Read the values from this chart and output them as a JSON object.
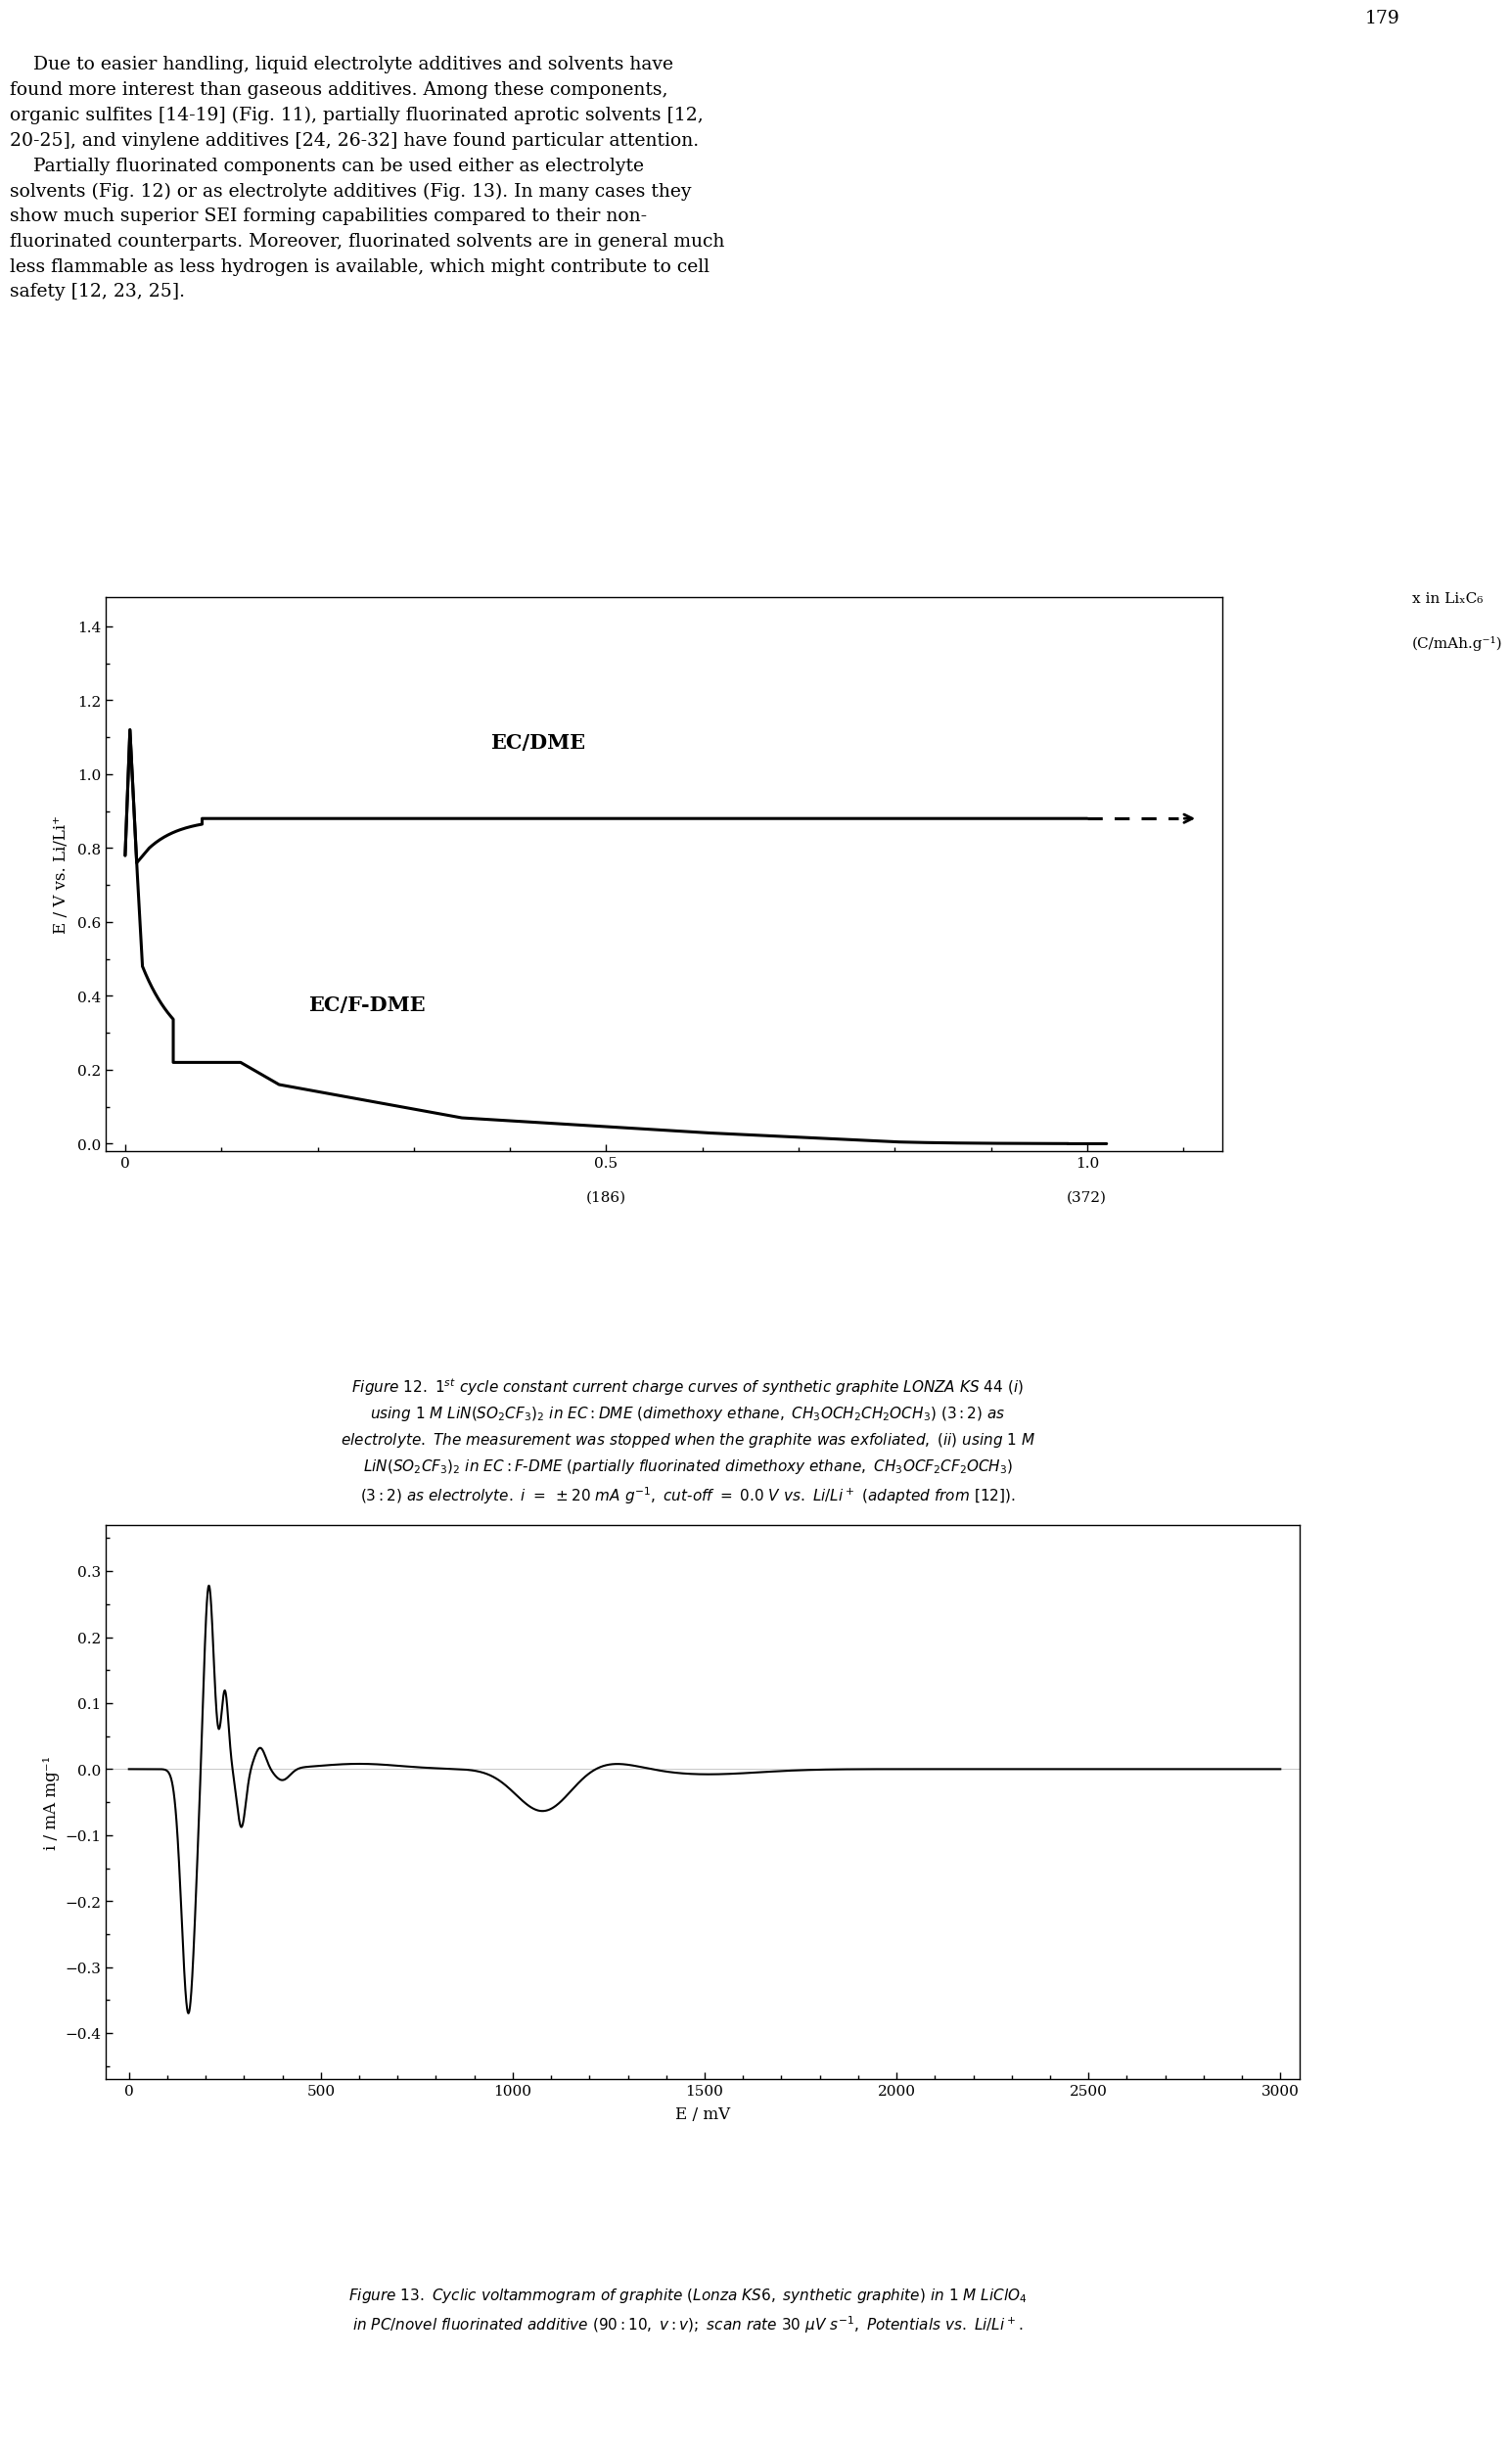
{
  "page_number": "179",
  "body_text_line1": "    Due to easier handling, liquid electrolyte additives and solvents have",
  "body_text_line2": "found more interest than gaseous additives. Among these components,",
  "body_text_line3": "organic sulfites [14-19] (Fig. 11), partially fluorinated aprotic solvents [12,",
  "body_text_line4": "20-25], and vinylene additives [24, 26-32] have found particular attention.",
  "body_text_line5": "    Partially fluorinated components can be used either as electrolyte",
  "body_text_line6": "solvents (Fig. 12) or as electrolyte additives (Fig. 13). In many cases they",
  "body_text_line7": "show much superior SEI forming capabilities compared to their non-",
  "body_text_line8": "fluorinated counterparts. Moreover, fluorinated solvents are in general much",
  "body_text_line9": "less flammable as less hydrogen is available, which might contribute to cell",
  "body_text_line10": "safety [12, 23, 25].",
  "fig12_ylabel": "E / V vs. Li/Li⁺",
  "fig12_xlabel_right1": "x in LiₓC₆",
  "fig12_xlabel_right2": "(C/mAh.g⁻¹)",
  "fig12_xlabel_bottom1": "(186)",
  "fig12_xlabel_bottom2": "(372)",
  "fig12_xticks": [
    0,
    0.5,
    1.0
  ],
  "fig12_xtick_labels": [
    "0",
    "0.5",
    "1.0"
  ],
  "fig12_yticks": [
    0,
    0.2,
    0.4,
    0.6,
    0.8,
    1.0,
    1.2,
    1.4
  ],
  "fig12_ylim": [
    -0.02,
    1.48
  ],
  "fig12_xlim": [
    -0.02,
    1.14
  ],
  "fig12_label_ecdme": "EC/DME",
  "fig12_label_ecfdme": "EC/F-DME",
  "fig13_ylabel": "i / mA mg⁻¹",
  "fig13_xlabel": "E / mV",
  "fig13_xticks": [
    0,
    500,
    1000,
    1500,
    2000,
    2500,
    3000
  ],
  "fig13_yticks": [
    -0.4,
    -0.3,
    -0.2,
    -0.1,
    0.0,
    0.1,
    0.2,
    0.3
  ],
  "fig13_ylim": [
    -0.47,
    0.37
  ],
  "fig13_xlim": [
    -60,
    3050
  ],
  "background_color": "#ffffff",
  "line_color": "#000000",
  "font_size_body": 13.5,
  "font_size_caption": 11.0,
  "font_size_axis_label": 12,
  "font_size_tick": 11,
  "font_size_annotation": 13
}
